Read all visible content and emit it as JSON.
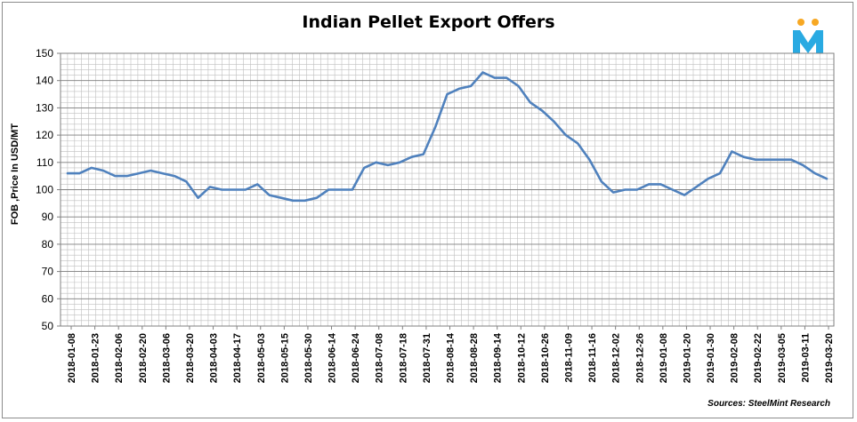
{
  "chart_data": {
    "type": "line",
    "title": "Indian Pellet Export Offers",
    "ylabel": "FOB ,Price In USD/MT",
    "xlabel": "",
    "ylim": [
      50,
      150
    ],
    "yticks": [
      50,
      60,
      70,
      80,
      90,
      100,
      110,
      120,
      130,
      140,
      150
    ],
    "grid": "on",
    "legend": "none",
    "x_tick_labels": [
      "2018-01-08",
      "2018-01-23",
      "2018-02-06",
      "2018-02-20",
      "2018-03-06",
      "2018-03-20",
      "2018-04-03",
      "2018-04-17",
      "2018-05-03",
      "2018-05-15",
      "2018-05-30",
      "2018-06-14",
      "2018-06-24",
      "2018-07-08",
      "2018-07-18",
      "2018-07-31",
      "2018-08-14",
      "2018-08-28",
      "2018-09-14",
      "2018-10-12",
      "2018-10-26",
      "2018-11-09",
      "2018-11-16",
      "2018-12-02",
      "2018-12-26",
      "2019-01-08",
      "2019-01-20",
      "2019-01-30",
      "2019-02-08",
      "2019-02-22",
      "2019-03-05",
      "2019-03-11",
      "2019-03-20"
    ],
    "series": [
      {
        "color": "#4f81bd",
        "values": [
          106,
          106,
          108,
          107,
          105,
          105,
          106,
          107,
          106,
          105,
          103,
          97,
          101,
          100,
          100,
          100,
          102,
          98,
          97,
          96,
          96,
          97,
          100,
          100,
          100,
          108,
          110,
          109,
          110,
          112,
          113,
          123,
          135,
          137,
          138,
          143,
          141,
          141,
          138,
          132,
          129,
          125,
          120,
          117,
          111,
          103,
          99,
          100,
          100,
          102,
          102,
          100,
          98,
          101,
          104,
          106,
          114,
          112,
          111,
          111,
          111,
          111,
          109,
          106,
          104
        ]
      }
    ]
  },
  "source_text": "Sources: SteelMint Research",
  "logo": {
    "letter": "M",
    "colors": {
      "letter": "#29aae2",
      "dots": "#f7a823"
    }
  }
}
